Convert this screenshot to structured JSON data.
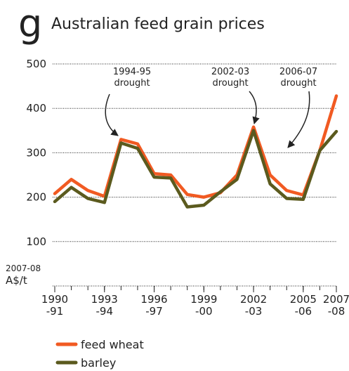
{
  "chart_data": {
    "type": "line",
    "panel_letter": "g",
    "title": "Australian feed grain prices",
    "y_unit_lines": [
      "2007-08",
      "A$/t"
    ],
    "x": [
      1990,
      1991,
      1992,
      1993,
      1994,
      1995,
      1996,
      1997,
      1998,
      1999,
      2000,
      2001,
      2002,
      2003,
      2004,
      2005,
      2006,
      2007
    ],
    "series": [
      {
        "name": "feed wheat",
        "color": "#f15a22",
        "values": [
          208,
          240,
          215,
          202,
          330,
          320,
          253,
          250,
          206,
          200,
          210,
          250,
          358,
          250,
          215,
          205,
          305,
          428
        ]
      },
      {
        "name": "barley",
        "color": "#5b5a1e",
        "values": [
          190,
          222,
          197,
          188,
          322,
          310,
          245,
          243,
          178,
          182,
          212,
          240,
          350,
          230,
          197,
          195,
          305,
          348
        ]
      }
    ],
    "xlim": [
      1990,
      2007
    ],
    "xticks": [
      {
        "value": 1990,
        "label": "1990",
        "sublabel": "-91"
      },
      {
        "value": 1993,
        "label": "1993",
        "sublabel": "-94"
      },
      {
        "value": 1996,
        "label": "1996",
        "sublabel": "-97"
      },
      {
        "value": 1999,
        "label": "1999",
        "sublabel": "-00"
      },
      {
        "value": 2002,
        "label": "2002",
        "sublabel": "-03"
      },
      {
        "value": 2005,
        "label": "2005",
        "sublabel": "-06"
      },
      {
        "value": 2007,
        "label": "2007",
        "sublabel": "-08"
      }
    ],
    "minor_xticks": [
      1990,
      1991,
      1992,
      1993,
      1994,
      1995,
      1996,
      1997,
      1998,
      1999,
      2000,
      2001,
      2002,
      2003,
      2004,
      2005,
      2006,
      2007
    ],
    "ylim": [
      0,
      500
    ],
    "yticks": [
      100,
      200,
      300,
      400,
      500
    ],
    "grid": true,
    "annotations": [
      {
        "lines": [
          "1994-95",
          "drought"
        ]
      },
      {
        "lines": [
          "2002-03",
          "drought"
        ]
      },
      {
        "lines": [
          "2006-07",
          "drought"
        ]
      }
    ]
  }
}
